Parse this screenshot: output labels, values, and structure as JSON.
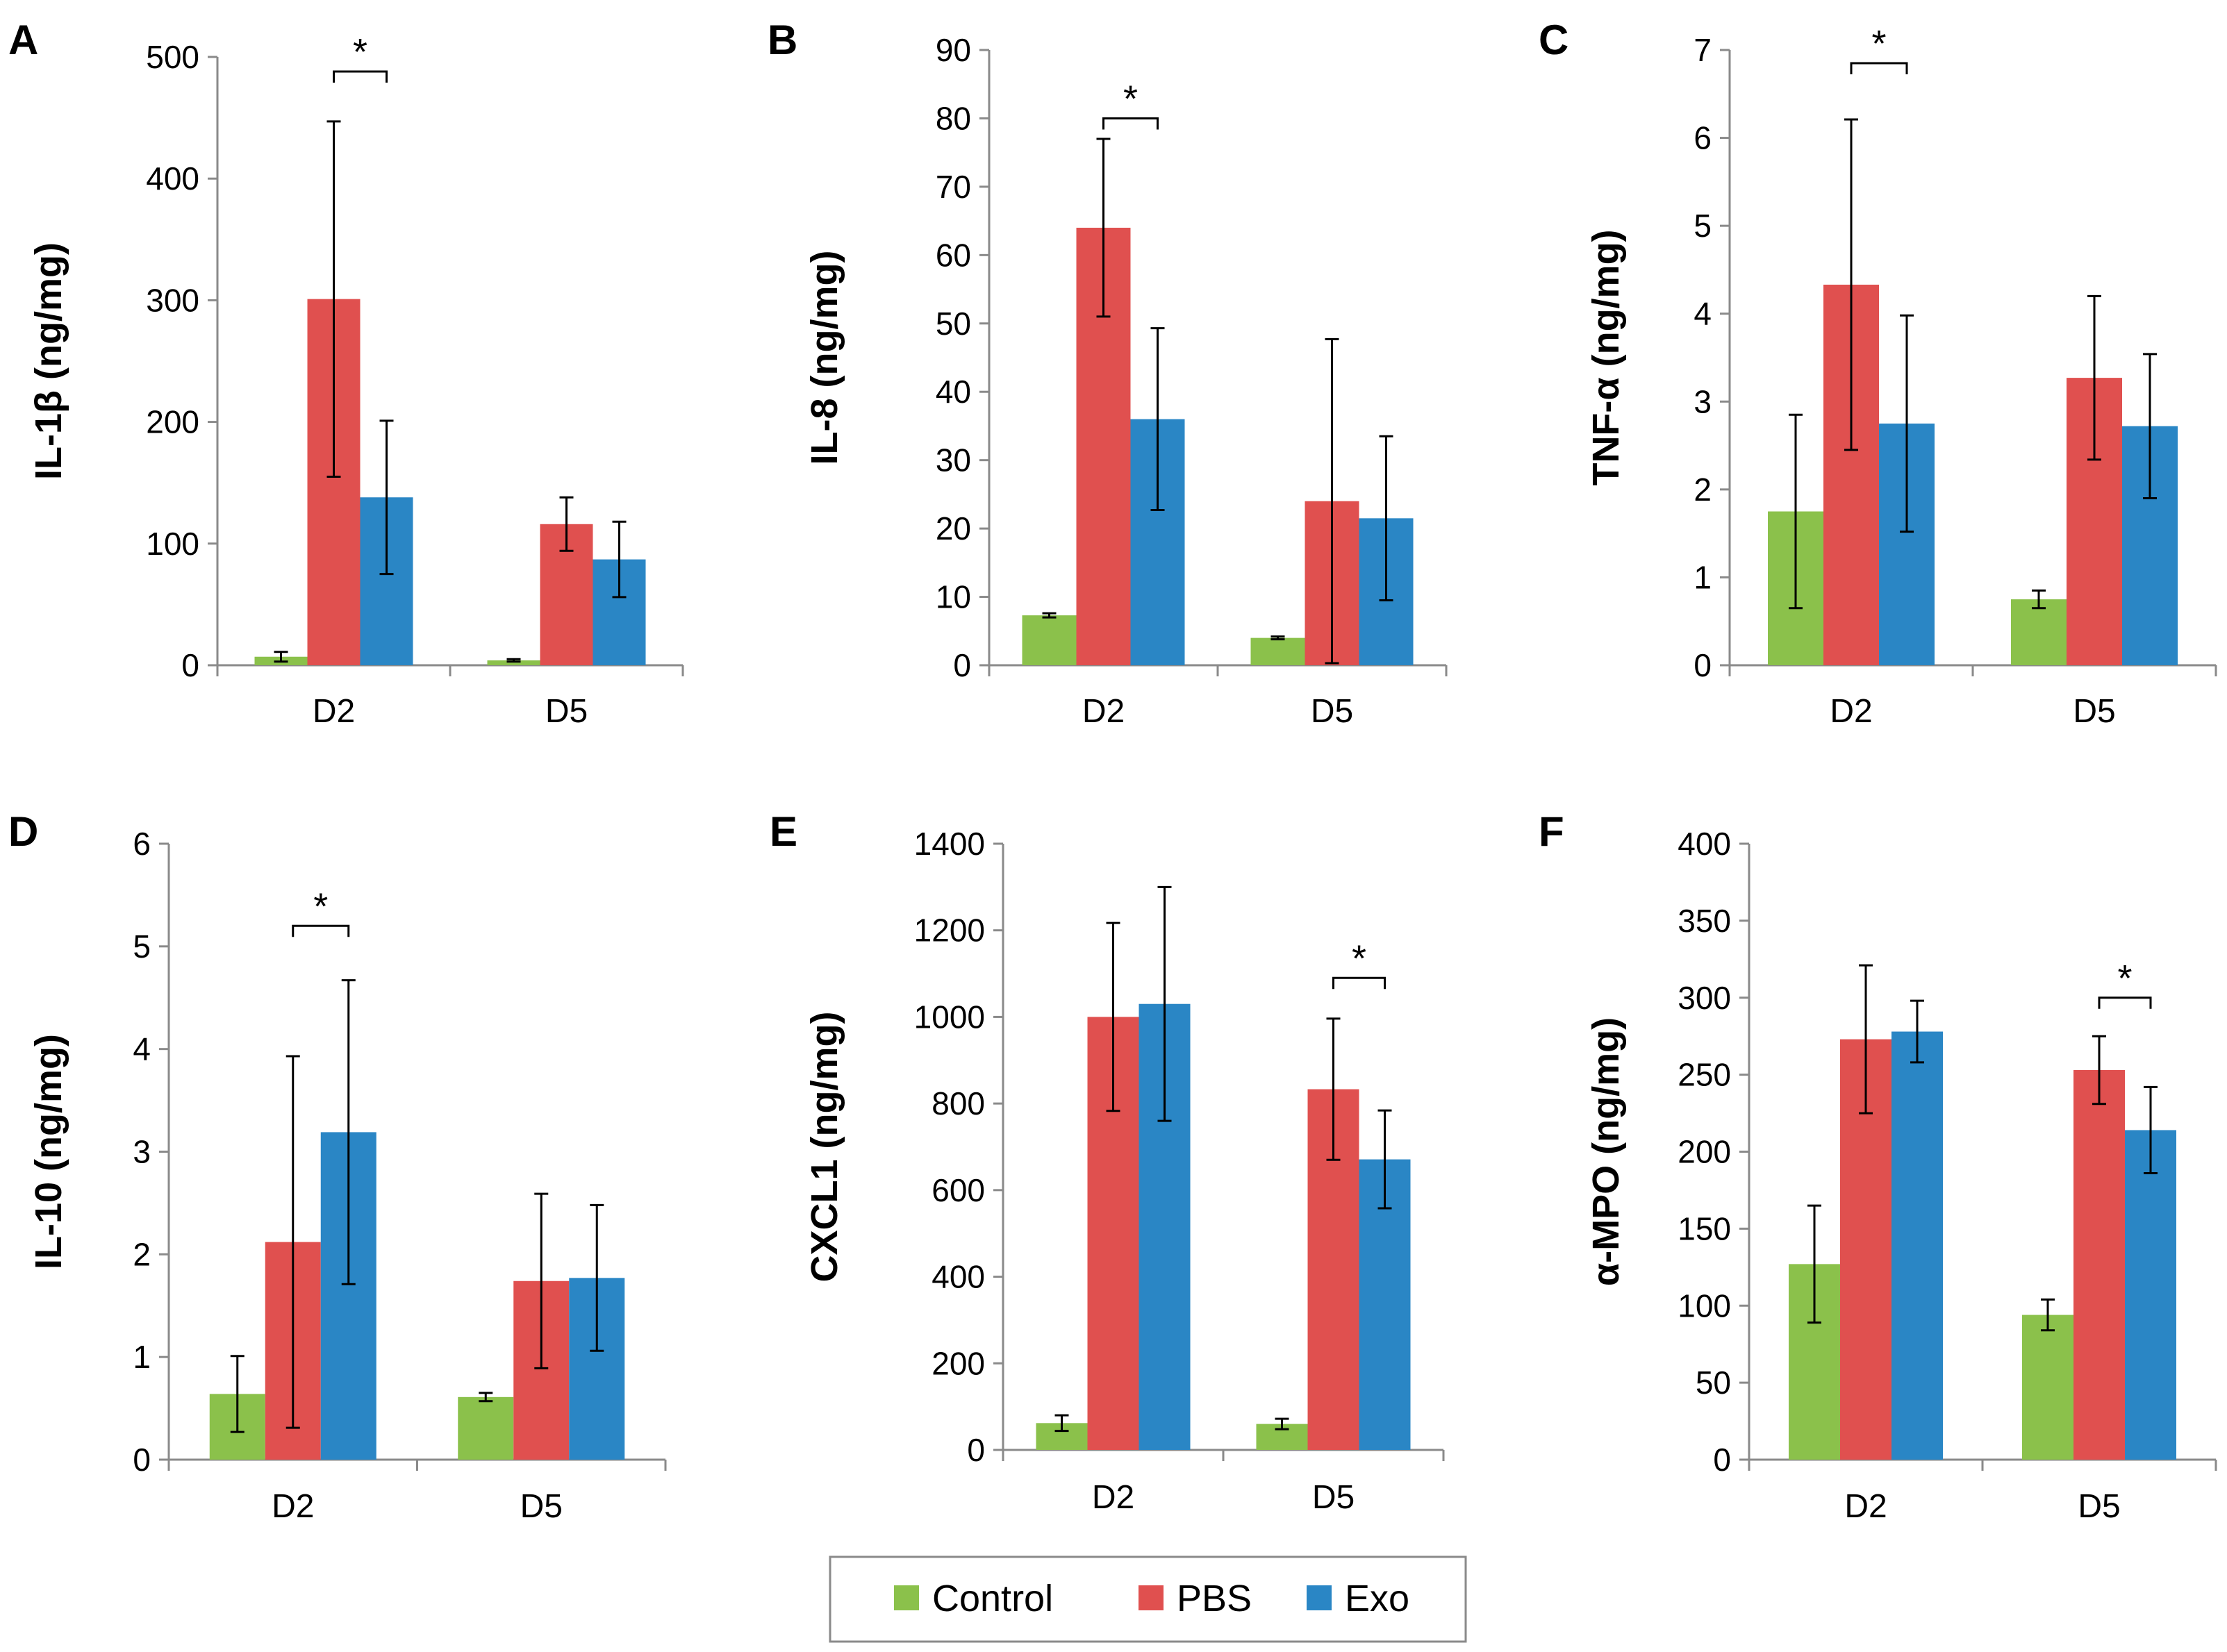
{
  "colors": {
    "Control": "#8BC14B",
    "PBS": "#E0504F",
    "Exo": "#2A86C5"
  },
  "legend": [
    "Control",
    "PBS",
    "Exo"
  ],
  "chart_data": [
    {
      "panel": "A",
      "type": "bar",
      "ylabel": "IL-1β (ng/mg)",
      "categories": [
        "D2",
        "D5"
      ],
      "ylim": [
        0,
        500
      ],
      "yticks": [
        "0",
        "100",
        "200",
        "300",
        "400",
        "500"
      ],
      "ytick_values": [
        0,
        100,
        200,
        300,
        400,
        500
      ],
      "series": [
        {
          "name": "Control",
          "values": [
            7,
            4
          ],
          "errors": [
            4,
            1
          ]
        },
        {
          "name": "PBS",
          "values": [
            301,
            116
          ],
          "errors": [
            146,
            22
          ]
        },
        {
          "name": "Exo",
          "values": [
            138,
            87
          ],
          "errors": [
            63,
            31
          ]
        }
      ],
      "significance": [
        {
          "category": "D2",
          "pair": [
            "PBS",
            "Exo"
          ],
          "label": "*",
          "bracket_y": 488
        }
      ]
    },
    {
      "panel": "B",
      "type": "bar",
      "ylabel": "IL-8 (ng/mg)",
      "categories": [
        "D2",
        "D5"
      ],
      "ylim": [
        0,
        90
      ],
      "yticks": [
        "0",
        "10",
        "20",
        "30",
        "40",
        "50",
        "60",
        "70",
        "80",
        "90"
      ],
      "ytick_values": [
        0,
        10,
        20,
        30,
        40,
        50,
        60,
        70,
        80,
        90
      ],
      "series": [
        {
          "name": "Control",
          "values": [
            7.3,
            4.0
          ],
          "errors": [
            0.3,
            0.2
          ]
        },
        {
          "name": "PBS",
          "values": [
            64,
            24
          ],
          "errors": [
            13,
            23.7
          ]
        },
        {
          "name": "Exo",
          "values": [
            36,
            21.5
          ],
          "errors": [
            13.3,
            12
          ]
        }
      ],
      "significance": [
        {
          "category": "D2",
          "pair": [
            "PBS",
            "Exo"
          ],
          "label": "*",
          "bracket_y": 80
        }
      ]
    },
    {
      "panel": "C",
      "type": "bar",
      "ylabel": "TNF-α (ng/mg)",
      "categories": [
        "D2",
        "D5"
      ],
      "ylim": [
        0,
        7
      ],
      "yticks": [
        "0",
        "1",
        "2",
        "3",
        "4",
        "5",
        "6",
        "7"
      ],
      "ytick_values": [
        0,
        1,
        2,
        3,
        4,
        5,
        6,
        7
      ],
      "series": [
        {
          "name": "Control",
          "values": [
            1.75,
            0.75
          ],
          "errors": [
            1.1,
            0.1
          ]
        },
        {
          "name": "PBS",
          "values": [
            4.33,
            3.27
          ],
          "errors": [
            1.88,
            0.93
          ]
        },
        {
          "name": "Exo",
          "values": [
            2.75,
            2.72
          ],
          "errors": [
            1.23,
            0.82
          ]
        }
      ],
      "significance": [
        {
          "category": "D2",
          "pair": [
            "PBS",
            "Exo"
          ],
          "label": "*",
          "bracket_y": 6.85
        }
      ]
    },
    {
      "panel": "D",
      "type": "bar",
      "ylabel": "IL-10 (ng/mg)",
      "categories": [
        "D2",
        "D5"
      ],
      "ylim": [
        0,
        6
      ],
      "yticks": [
        "0",
        "1",
        "2",
        "3",
        "4",
        "5",
        "6"
      ],
      "ytick_values": [
        0,
        1,
        2,
        3,
        4,
        5,
        6
      ],
      "series": [
        {
          "name": "Control",
          "values": [
            0.64,
            0.61
          ],
          "errors": [
            0.37,
            0.04
          ]
        },
        {
          "name": "PBS",
          "values": [
            2.12,
            1.74
          ],
          "errors": [
            1.81,
            0.85
          ]
        },
        {
          "name": "Exo",
          "values": [
            3.19,
            1.77
          ],
          "errors": [
            1.48,
            0.71
          ]
        }
      ],
      "significance": [
        {
          "category": "D2",
          "pair": [
            "PBS",
            "Exo"
          ],
          "label": "*",
          "bracket_y": 5.2
        }
      ]
    },
    {
      "panel": "E",
      "type": "bar",
      "ylabel": "CXCL1 (ng/mg)",
      "categories": [
        "D2",
        "D5"
      ],
      "ylim": [
        0,
        1400
      ],
      "yticks": [
        "0",
        "200",
        "400",
        "600",
        "800",
        "1000",
        "1200",
        "1400"
      ],
      "ytick_values": [
        0,
        200,
        400,
        600,
        800,
        1000,
        1200,
        1400
      ],
      "series": [
        {
          "name": "Control",
          "values": [
            62,
            60
          ],
          "errors": [
            18,
            12
          ]
        },
        {
          "name": "PBS",
          "values": [
            1000,
            833
          ],
          "errors": [
            217,
            163
          ]
        },
        {
          "name": "Exo",
          "values": [
            1030,
            671
          ],
          "errors": [
            270,
            113
          ]
        }
      ],
      "significance": [
        {
          "category": "D5",
          "pair": [
            "PBS",
            "Exo"
          ],
          "label": "*",
          "bracket_y": 1090
        }
      ]
    },
    {
      "panel": "F",
      "type": "bar",
      "ylabel": "α-MPO (ng/mg)",
      "categories": [
        "D2",
        "D5"
      ],
      "ylim": [
        0,
        400
      ],
      "yticks": [
        "0",
        "50",
        "100",
        "150",
        "200",
        "250",
        "300",
        "350",
        "400"
      ],
      "ytick_values": [
        0,
        50,
        100,
        150,
        200,
        250,
        300,
        350,
        400
      ],
      "series": [
        {
          "name": "Control",
          "values": [
            127,
            94
          ],
          "errors": [
            38,
            10
          ]
        },
        {
          "name": "PBS",
          "values": [
            273,
            253
          ],
          "errors": [
            48,
            22
          ]
        },
        {
          "name": "Exo",
          "values": [
            278,
            214
          ],
          "errors": [
            20,
            28
          ]
        }
      ],
      "significance": [
        {
          "category": "D5",
          "pair": [
            "PBS",
            "Exo"
          ],
          "label": "*",
          "bracket_y": 300
        }
      ]
    }
  ]
}
